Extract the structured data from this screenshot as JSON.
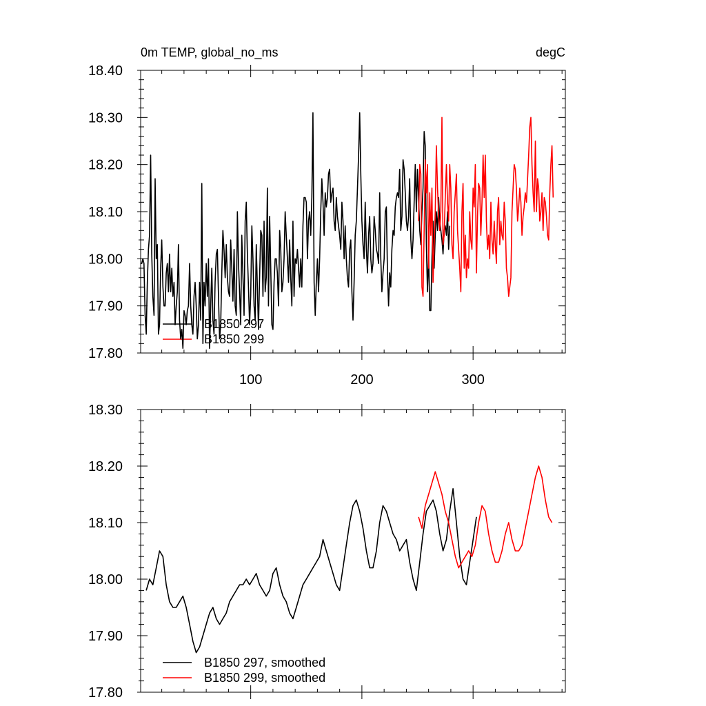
{
  "colors": {
    "series_a": "#000000",
    "series_b": "#ff0000",
    "axis": "#000000",
    "background": "#ffffff"
  },
  "chart_data": [
    {
      "type": "line",
      "title_left": "0m TEMP, global_no_ms",
      "title_right": "degC",
      "xlim": [
        1,
        383
      ],
      "ylim": [
        17.8,
        18.4
      ],
      "yticks": [
        17.8,
        17.9,
        18.0,
        18.1,
        18.2,
        18.3,
        18.4
      ],
      "ytick_labels": [
        "17.80",
        "17.90",
        "18.00",
        "18.10",
        "18.20",
        "18.30",
        "18.40"
      ],
      "xticks": [
        100,
        200,
        300
      ],
      "xtick_labels": [
        "100",
        "200",
        "300"
      ],
      "legend": [
        {
          "name": "B1850 297",
          "color": "#000000"
        },
        {
          "name": "B1850 299",
          "color": "#ff0000"
        }
      ],
      "series": [
        {
          "name": "B1850 297",
          "color": "#000000",
          "x_start": 1,
          "values": [
            17.99,
            17.99,
            18.0,
            17.99,
            17.88,
            17.84,
            17.95,
            18.02,
            18.05,
            18.22,
            18.01,
            17.92,
            17.88,
            18.17,
            18.0,
            18.03,
            17.84,
            17.86,
            17.98,
            18.04,
            17.94,
            17.9,
            17.9,
            17.97,
            17.99,
            17.93,
            18.01,
            17.93,
            17.98,
            17.92,
            17.95,
            17.86,
            17.9,
            17.93,
            18.03,
            17.87,
            17.83,
            17.85,
            17.81,
            17.89,
            17.88,
            17.86,
            17.89,
            17.9,
            17.99,
            17.9,
            17.86,
            17.84,
            17.92,
            17.95,
            17.9,
            17.83,
            17.86,
            17.95,
            17.87,
            18.16,
            17.82,
            17.95,
            17.9,
            17.99,
            17.92,
            18.0,
            17.81,
            17.9,
            17.98,
            17.87,
            17.84,
            17.95,
            18.01,
            18.02,
            17.92,
            17.83,
            17.86,
            17.97,
            18.06,
            18.02,
            17.96,
            18.03,
            17.96,
            17.93,
            17.92,
            18.04,
            17.98,
            17.91,
            18.02,
            17.9,
            17.88,
            18.1,
            17.99,
            17.93,
            17.86,
            18.05,
            17.96,
            17.88,
            18.08,
            18.12,
            18.01,
            17.94,
            17.86,
            17.92,
            18.07,
            18.0,
            17.9,
            17.87,
            18.03,
            17.94,
            17.85,
            17.96,
            18.06,
            18.05,
            17.92,
            18.08,
            17.93,
            17.96,
            18.15,
            17.9,
            18.09,
            17.98,
            17.86,
            17.85,
            17.95,
            18.0,
            18.0,
            17.97,
            17.9,
            18.06,
            18.02,
            17.93,
            17.95,
            18.0,
            18.1,
            18.05,
            18.0,
            17.95,
            18.04,
            17.96,
            17.9,
            18.08,
            17.92,
            18.0,
            17.99,
            18.02,
            17.98,
            17.94,
            18.0,
            17.94,
            18.07,
            18.13,
            18.13,
            18.12,
            18.0,
            18.08,
            18.1,
            18.05,
            18.13,
            18.31,
            17.95,
            17.88,
            17.95,
            18.0,
            17.93,
            18.0,
            18.1,
            18.17,
            18.12,
            18.05,
            18.14,
            18.11,
            18.13,
            18.18,
            18.19,
            18.12,
            18.14,
            18.15,
            18.08,
            18.06,
            18.13,
            18.09,
            18.07,
            18.05,
            18.02,
            18.12,
            18.08,
            18.0,
            18.07,
            18.0,
            17.96,
            17.94,
            18.02,
            18.04,
            17.93,
            17.87,
            17.95,
            18.05,
            18.08,
            18.15,
            18.22,
            18.31,
            18.18,
            18.08,
            18.03,
            18.0,
            18.12,
            18.02,
            17.97,
            18.05,
            18.09,
            18.0,
            17.97,
            17.99,
            18.09,
            18.06,
            18.02,
            18.01,
            17.99,
            18.14,
            18.0,
            17.93,
            17.97,
            18.0,
            18.1,
            18.11,
            17.97,
            17.9,
            17.97,
            17.94,
            18.02,
            18.06,
            18.05,
            18.11,
            18.13,
            18.14,
            18.13,
            18.19,
            18.06,
            18.09,
            18.21,
            18.19,
            18.14,
            18.08,
            18.06,
            18.09,
            18.17,
            18.04,
            18.0,
            18.04,
            18.12,
            18.2,
            18.1,
            18.19,
            18.13,
            18.06,
            18.03,
            18.1,
            18.15,
            18.27,
            18.24,
            18.03,
            17.93,
            18.01,
            17.89,
            17.89,
            18.0,
            18.08,
            17.98,
            18.05,
            18.1,
            18.06,
            18.13,
            18.08,
            18.06,
            18.04,
            18.01,
            18.06,
            18.07,
            18.05,
            18.1,
            18.02,
            18.07
          ]
        },
        {
          "name": "B1850 299",
          "color": "#ff0000",
          "x_start": 251,
          "values": [
            18.08,
            18.2,
            18.18,
            17.94,
            17.92,
            18.06,
            18.21,
            18.14,
            18.2,
            17.98,
            18.14,
            18.05,
            18.15,
            17.95,
            18.03,
            18.1,
            18.24,
            18.15,
            18.09,
            18.06,
            18.1,
            18.3,
            18.03,
            18.05,
            18.13,
            18.2,
            18.12,
            18.08,
            18.2,
            18.15,
            18.03,
            18.0,
            18.1,
            18.14,
            18.18,
            18.06,
            18.02,
            17.98,
            17.93,
            18.1,
            18.16,
            17.98,
            18.05,
            17.96,
            18.0,
            17.98,
            18.1,
            18.04,
            18.02,
            18.15,
            18.11,
            18.2,
            17.97,
            18.09,
            18.16,
            18.15,
            18.05,
            18.12,
            18.22,
            18.13,
            18.22,
            18.08,
            18.02,
            18.05,
            18.0,
            18.12,
            18.04,
            18.01,
            18.08,
            18.03,
            17.99,
            18.1,
            18.13,
            18.03,
            18.08,
            18.05,
            18.04,
            18.12,
            18.08,
            17.98,
            17.96,
            17.92,
            17.94,
            17.96,
            18.1,
            18.15,
            18.2,
            18.19,
            18.15,
            18.08,
            18.11,
            18.15,
            18.12,
            18.05,
            18.09,
            18.11,
            18.14,
            18.12,
            18.17,
            18.22,
            18.28,
            18.3,
            18.2,
            18.14,
            18.1,
            18.25,
            18.1,
            18.17,
            18.15,
            18.08,
            18.1,
            18.14,
            18.06,
            18.13,
            18.12,
            18.09,
            18.05,
            18.04,
            18.14,
            18.2,
            18.24,
            18.13
          ]
        }
      ]
    },
    {
      "type": "line",
      "xlim": [
        1,
        383
      ],
      "ylim": [
        17.8,
        18.3
      ],
      "yticks": [
        17.8,
        17.9,
        18.0,
        18.1,
        18.2,
        18.3
      ],
      "ytick_labels": [
        "17.80",
        "17.90",
        "18.00",
        "18.10",
        "18.20",
        "18.30"
      ],
      "xticks": [
        100,
        200,
        300
      ],
      "xtick_labels": [],
      "legend": [
        {
          "name": "B1850 297, smoothed",
          "color": "#000000"
        },
        {
          "name": "B1850 299, smoothed",
          "color": "#ff0000"
        }
      ],
      "series": [
        {
          "name": "B1850 297, smoothed",
          "color": "#000000",
          "x_start": 6,
          "x_step": 3,
          "values": [
            17.98,
            18.0,
            17.99,
            18.02,
            18.05,
            18.04,
            17.99,
            17.96,
            17.95,
            17.95,
            17.96,
            17.97,
            17.95,
            17.92,
            17.89,
            17.87,
            17.88,
            17.9,
            17.92,
            17.94,
            17.95,
            17.93,
            17.92,
            17.93,
            17.94,
            17.96,
            17.97,
            17.98,
            17.99,
            17.99,
            18.0,
            17.99,
            18.0,
            18.01,
            17.99,
            17.98,
            17.97,
            17.98,
            18.01,
            18.02,
            17.99,
            17.97,
            17.96,
            17.94,
            17.93,
            17.95,
            17.97,
            17.99,
            18.0,
            18.01,
            18.02,
            18.03,
            18.04,
            18.07,
            18.05,
            18.03,
            18.01,
            17.99,
            17.98,
            18.02,
            18.06,
            18.1,
            18.13,
            18.14,
            18.12,
            18.09,
            18.05,
            18.02,
            18.02,
            18.05,
            18.1,
            18.13,
            18.12,
            18.1,
            18.08,
            18.07,
            18.05,
            18.06,
            18.07,
            18.03,
            18.0,
            17.98,
            18.03,
            18.08,
            18.12,
            18.13,
            18.14,
            18.12,
            18.08,
            18.05,
            18.07,
            18.12,
            18.16,
            18.1,
            18.04,
            18.0,
            17.99,
            18.03,
            18.07,
            18.11
          ]
        },
        {
          "name": "B1850 299, smoothed",
          "color": "#ff0000",
          "x_start": 251,
          "x_step": 3,
          "values": [
            18.11,
            18.09,
            18.13,
            18.15,
            18.17,
            18.19,
            18.17,
            18.15,
            18.12,
            18.1,
            18.07,
            18.04,
            18.02,
            18.03,
            18.04,
            18.05,
            18.04,
            18.06,
            18.1,
            18.13,
            18.12,
            18.08,
            18.05,
            18.03,
            18.03,
            18.05,
            18.08,
            18.1,
            18.07,
            18.05,
            18.05,
            18.06,
            18.09,
            18.12,
            18.15,
            18.18,
            18.2,
            18.18,
            18.14,
            18.11,
            18.1
          ]
        }
      ]
    }
  ]
}
